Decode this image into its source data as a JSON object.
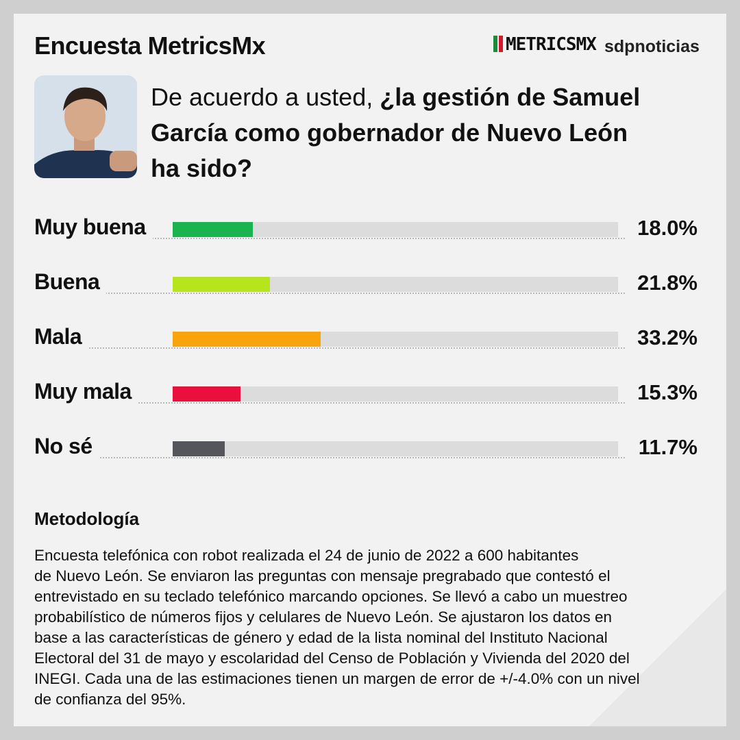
{
  "chart_data": {
    "type": "bar",
    "title": "Encuesta MetricsMx",
    "logos": [
      "METRICSMX",
      "sdpnoticias"
    ],
    "question": {
      "lead": "De acuerdo a usted, ",
      "bold": [
        "¿la gestión de Samuel",
        "García como gobernador de Nuevo León",
        "ha sido?"
      ]
    },
    "categories": [
      "Muy buena",
      "Buena",
      "Mala",
      "Muy mala",
      "No sé"
    ],
    "values": [
      18.0,
      21.8,
      33.2,
      15.3,
      11.7
    ],
    "value_labels": [
      "18.0%",
      "21.8%",
      "33.2%",
      "15.3%",
      "11.7%"
    ],
    "colors": [
      "#19b34f",
      "#b6e51e",
      "#f8a40c",
      "#e9103d",
      "#54565c"
    ],
    "xlim": [
      0,
      100
    ],
    "methodology": {
      "heading": "Metodología",
      "lines": [
        "Encuesta telefónica con robot realizada el 24 de junio de 2022 a 600 habitantes",
        "de Nuevo León. Se enviaron las preguntas con mensaje pregrabado que contestó el",
        "entrevistado en su teclado telefónico marcando opciones. Se llevó a cabo un muestreo",
        "probabilístico de números fijos y celulares de Nuevo León. Se ajustaron los datos en",
        "base a las características de género y edad de la lista nominal del Instituto Nacional",
        "Electoral del 31 de mayo y escolaridad del Censo de Población y Vivienda del 2020 del",
        "INEGI. Cada una de las estimaciones tienen un margen de error de +/-4.0% con un nivel",
        "de confianza del 95%."
      ]
    }
  }
}
